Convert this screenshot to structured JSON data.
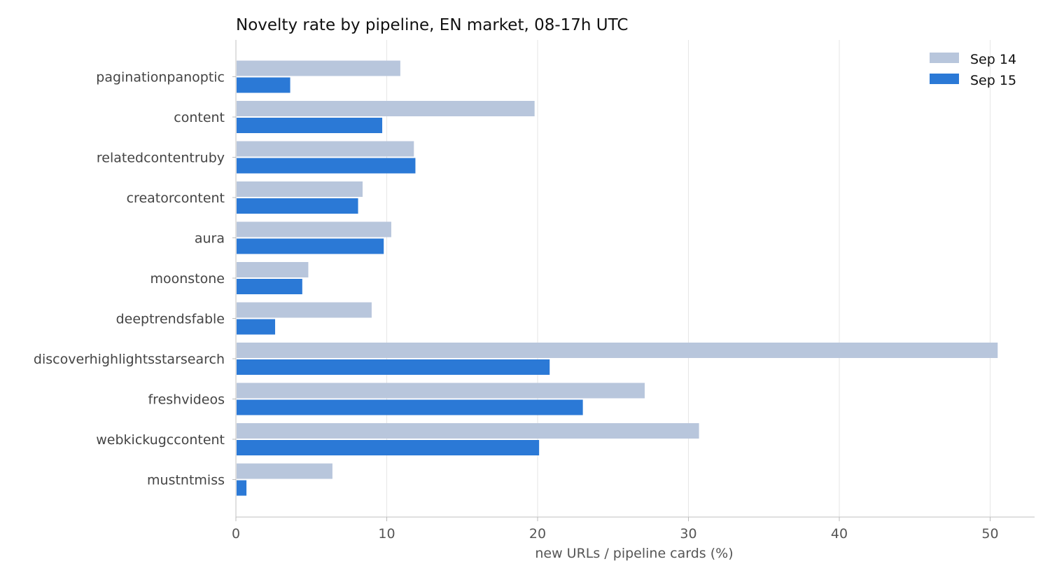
{
  "chart_data": {
    "type": "bar",
    "orientation": "horizontal",
    "title": "Novelty rate by pipeline, EN market, 08-17h UTC",
    "xlabel": "new URLs / pipeline cards (%)",
    "ylabel": "",
    "xlim": [
      0,
      53
    ],
    "xticks": [
      0,
      10,
      20,
      30,
      40,
      50
    ],
    "grid": "vertical",
    "legend_position": "top-right",
    "categories": [
      "paginationpanoptic",
      "content",
      "relatedcontentruby",
      "creatorcontent",
      "aura",
      "moonstone",
      "deeptrendsfable",
      "discoverhighlightsstarsearch",
      "freshvideos",
      "webkickugccontent",
      "mustntmiss"
    ],
    "series": [
      {
        "name": "Sep 14",
        "color": "#b8c6dc",
        "values": [
          10.9,
          19.8,
          11.8,
          8.4,
          10.3,
          4.8,
          9.0,
          50.5,
          27.1,
          30.7,
          6.4
        ]
      },
      {
        "name": "Sep 15",
        "color": "#2b79d6",
        "values": [
          3.6,
          9.7,
          11.9,
          8.1,
          9.8,
          4.4,
          2.6,
          20.8,
          23.0,
          20.1,
          0.7
        ]
      }
    ]
  }
}
